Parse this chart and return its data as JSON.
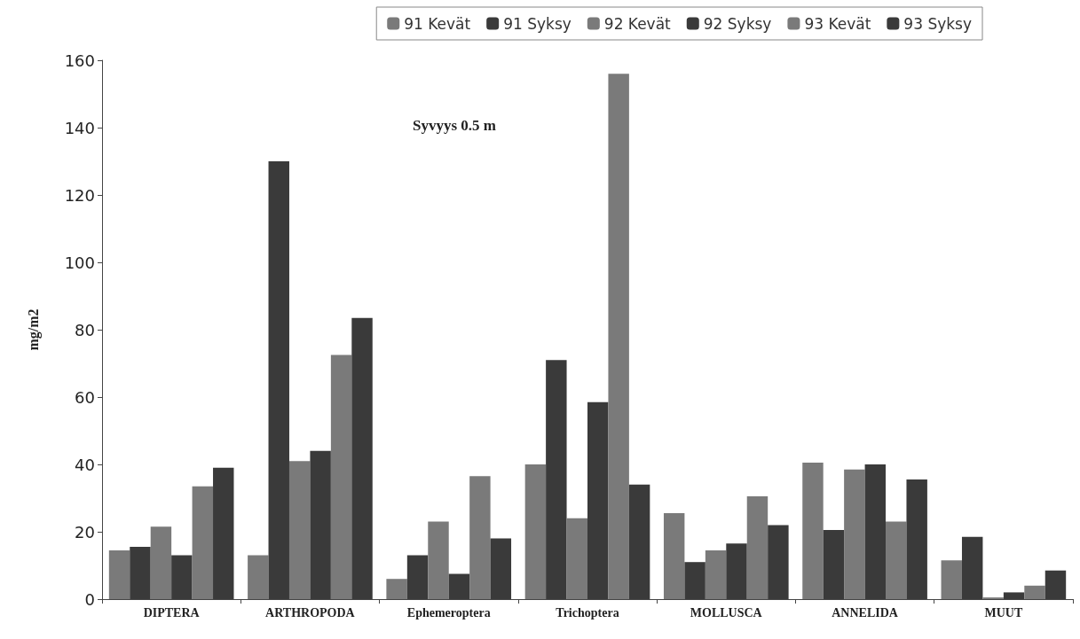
{
  "chart_data": {
    "type": "bar",
    "title": "Syvyys 0.5 m",
    "ylabel": "mg/m2",
    "categories": [
      "DIPTERA",
      "ARTHROPODA",
      "Ephemeroptera",
      "Trichoptera",
      "MOLLUSCA",
      "ANNELIDA",
      "MUUT"
    ],
    "series": [
      {
        "name": "91 Kevät",
        "color": "#7a7a7a",
        "values": [
          14.5,
          13,
          6,
          40,
          25.5,
          40.5,
          11.5
        ]
      },
      {
        "name": "91 Syksy",
        "color": "#3a3a3a",
        "values": [
          15.5,
          130,
          13,
          71,
          11,
          20.5,
          18.5
        ]
      },
      {
        "name": "92 Kevät",
        "color": "#7a7a7a",
        "values": [
          21.5,
          41,
          23,
          24,
          14.5,
          38.5,
          0.5
        ]
      },
      {
        "name": "92 Syksy",
        "color": "#3a3a3a",
        "values": [
          13,
          44,
          7.5,
          58.5,
          16.5,
          40,
          2
        ]
      },
      {
        "name": "93 Kevät",
        "color": "#7a7a7a",
        "values": [
          33.5,
          72.5,
          36.5,
          156,
          30.5,
          23,
          4
        ]
      },
      {
        "name": "93 Syksy",
        "color": "#3a3a3a",
        "values": [
          39,
          83.5,
          18,
          34,
          22,
          35.5,
          8.5
        ]
      }
    ],
    "ylim": [
      0,
      160
    ],
    "yticks": [
      0,
      20,
      40,
      60,
      80,
      100,
      120,
      140,
      160
    ],
    "grid": false,
    "legend": "top right"
  }
}
